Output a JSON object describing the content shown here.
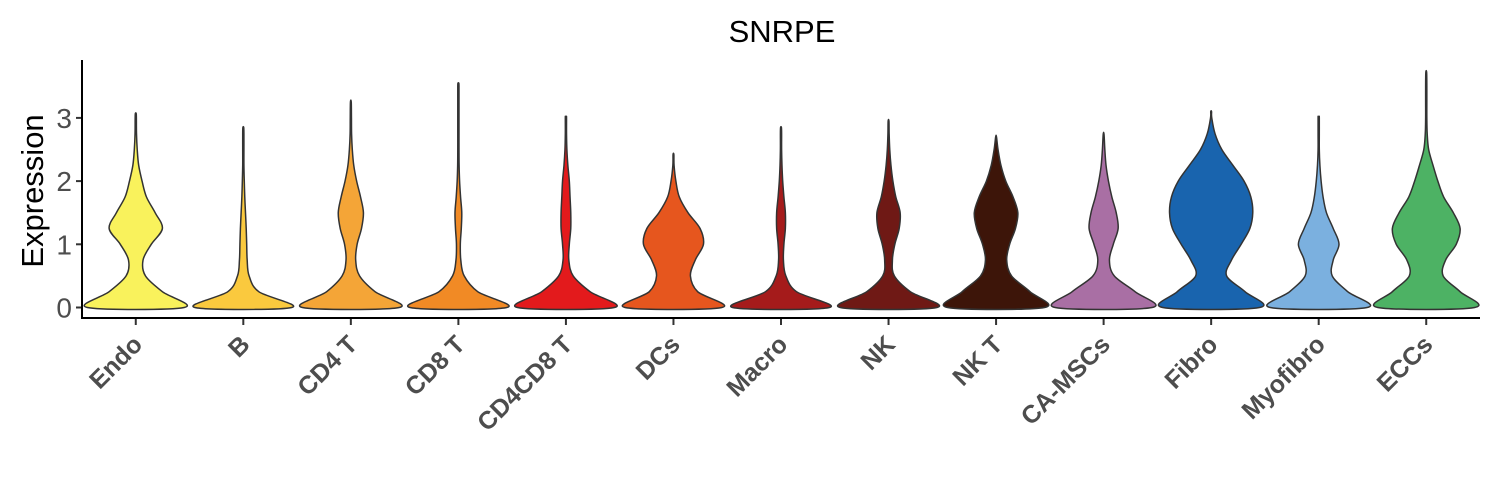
{
  "chart_data": {
    "type": "violin",
    "title": "SNRPE",
    "xlabel": "",
    "ylabel": "Expression",
    "ylim": [
      -0.2,
      3.85
    ],
    "yticks": [
      "0",
      "1",
      "2",
      "3"
    ],
    "grid": false,
    "legend": "none",
    "categories": [
      {
        "label": "Endo",
        "color": "#F9F25C",
        "max": 3.07,
        "widths": [
          1.0,
          0.55,
          0.2,
          0.15,
          0.32,
          0.55,
          0.4,
          0.22,
          0.13,
          0.06,
          0.03,
          0.015,
          0.0,
          0.0,
          0.0,
          0.0
        ]
      },
      {
        "label": "B",
        "color": "#FAC93E",
        "max": 2.85,
        "widths": [
          1.0,
          0.32,
          0.12,
          0.08,
          0.07,
          0.06,
          0.045,
          0.03,
          0.02,
          0.012,
          0.006,
          0.003,
          0.0,
          0.0,
          0.0,
          0.0
        ]
      },
      {
        "label": "CD4 T",
        "color": "#F4A537",
        "max": 3.25,
        "widths": [
          1.0,
          0.5,
          0.18,
          0.1,
          0.13,
          0.22,
          0.26,
          0.2,
          0.12,
          0.06,
          0.03,
          0.015,
          0.007,
          0.0,
          0.0,
          0.0
        ]
      },
      {
        "label": "CD8 T",
        "color": "#F18A25",
        "max": 3.55,
        "widths": [
          1.0,
          0.4,
          0.12,
          0.05,
          0.04,
          0.06,
          0.07,
          0.045,
          0.025,
          0.015,
          0.01,
          0.006,
          0.003,
          0.0,
          0.0,
          0.0
        ]
      },
      {
        "label": "CD4CD8 T",
        "color": "#E31A1C",
        "max": 3.02,
        "widths": [
          1.0,
          0.5,
          0.15,
          0.06,
          0.07,
          0.1,
          0.1,
          0.085,
          0.07,
          0.04,
          0.02,
          0.01,
          0.0,
          0.0,
          0.0,
          0.0
        ]
      },
      {
        "label": "DCs",
        "color": "#E6561E",
        "max": 2.42,
        "widths": [
          1.0,
          0.5,
          0.35,
          0.45,
          0.62,
          0.55,
          0.3,
          0.12,
          0.05,
          0.01,
          0.0,
          0.0,
          0.0,
          0.0,
          0.0,
          0.0
        ]
      },
      {
        "label": "Macro",
        "color": "#A51B1B",
        "max": 2.85,
        "widths": [
          1.0,
          0.32,
          0.1,
          0.05,
          0.06,
          0.09,
          0.09,
          0.06,
          0.035,
          0.02,
          0.01,
          0.004,
          0.0,
          0.0,
          0.0,
          0.0
        ]
      },
      {
        "label": "NK",
        "color": "#6F1915",
        "max": 2.95,
        "widths": [
          1.0,
          0.45,
          0.12,
          0.08,
          0.13,
          0.22,
          0.24,
          0.15,
          0.09,
          0.05,
          0.025,
          0.01,
          0.0,
          0.0,
          0.0,
          0.0
        ]
      },
      {
        "label": "NK T",
        "color": "#3D1509",
        "max": 2.7,
        "widths": [
          1.0,
          0.7,
          0.32,
          0.22,
          0.28,
          0.4,
          0.45,
          0.35,
          0.2,
          0.1,
          0.04,
          0.0,
          0.0,
          0.0,
          0.0,
          0.0
        ]
      },
      {
        "label": "CA-MSCs",
        "color": "#A96FA4",
        "max": 2.74,
        "widths": [
          1.0,
          0.65,
          0.22,
          0.12,
          0.2,
          0.3,
          0.26,
          0.17,
          0.1,
          0.05,
          0.025,
          0.008,
          0.0,
          0.0,
          0.0,
          0.0
        ]
      },
      {
        "label": "Fibro",
        "color": "#1964AE",
        "max": 3.1,
        "widths": [
          1.0,
          0.7,
          0.32,
          0.42,
          0.62,
          0.8,
          0.86,
          0.82,
          0.68,
          0.45,
          0.22,
          0.08,
          0.0,
          0.0,
          0.0,
          0.0
        ]
      },
      {
        "label": "Myofibro",
        "color": "#7BB0DF",
        "max": 3.02,
        "widths": [
          1.0,
          0.6,
          0.28,
          0.3,
          0.42,
          0.3,
          0.16,
          0.09,
          0.05,
          0.025,
          0.012,
          0.005,
          0.0,
          0.0,
          0.0,
          0.0
        ]
      },
      {
        "label": "ECCs",
        "color": "#4DB264",
        "max": 3.72,
        "widths": [
          1.0,
          0.7,
          0.35,
          0.4,
          0.62,
          0.7,
          0.56,
          0.36,
          0.24,
          0.14,
          0.05,
          0.02,
          0.01,
          0.006,
          0.003,
          0.0
        ]
      }
    ]
  }
}
